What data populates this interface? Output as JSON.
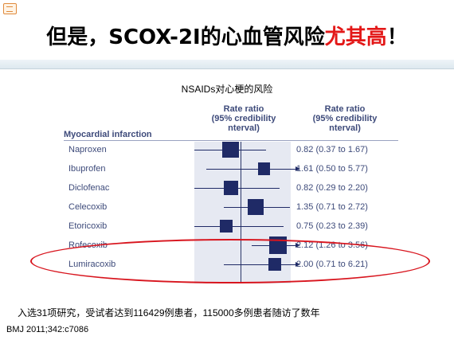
{
  "slide_title": {
    "prefix": "但是，SCOX-2I的心血管风险",
    "highlight": "尤其高",
    "suffix": "！"
  },
  "chart_data": {
    "type": "forest",
    "title": "NSAIDs对心梗的风险",
    "xlabel": "Rate ratio (95% credibility interval)",
    "column_header": "Rate ratio (95% credibility interval)",
    "section": "Myocardial infarction",
    "reference_value": 1,
    "log_scale": true,
    "rows": [
      {
        "drug": "Naproxen",
        "rr": 0.82,
        "low": 0.37,
        "high": 1.67,
        "ci_text": "0.82 (0.37 to 1.67)",
        "weight": 0.9
      },
      {
        "drug": "Ibuprofen",
        "rr": 1.61,
        "low": 0.5,
        "high": 5.77,
        "ci_text": "1.61 (0.50 to 5.77)",
        "weight": 0.55
      },
      {
        "drug": "Diclofenac",
        "rr": 0.82,
        "low": 0.29,
        "high": 2.2,
        "ci_text": "0.82 (0.29 to 2.20)",
        "weight": 0.7
      },
      {
        "drug": "Celecoxib",
        "rr": 1.35,
        "low": 0.71,
        "high": 2.72,
        "ci_text": "1.35 (0.71 to 2.72)",
        "weight": 0.85
      },
      {
        "drug": "Etoricoxib",
        "rr": 0.75,
        "low": 0.23,
        "high": 2.39,
        "ci_text": "0.75 (0.23 to 2.39)",
        "weight": 0.6
      },
      {
        "drug": "Rofecoxib",
        "rr": 2.12,
        "low": 1.26,
        "high": 3.56,
        "ci_text": "2.12 (1.26 to 3.56)",
        "weight": 1.0
      },
      {
        "drug": "Lumiracoxib",
        "rr": 2.0,
        "low": 0.71,
        "high": 6.21,
        "ci_text": "2.00 (0.71 to 6.21)",
        "weight": 0.6
      }
    ],
    "highlighted_rows": [
      "Rofecoxib",
      "Lumiracoxib"
    ]
  },
  "footnote": "入选31项研究，受试者达到116429例患者，115000多例患者随访了数年",
  "source": "BMJ 2011;342:c7086",
  "colors": {
    "highlight": "#e31818",
    "ellipse": "#d8151e",
    "markers": "#1f2a66",
    "text": "#3d4a7a"
  }
}
